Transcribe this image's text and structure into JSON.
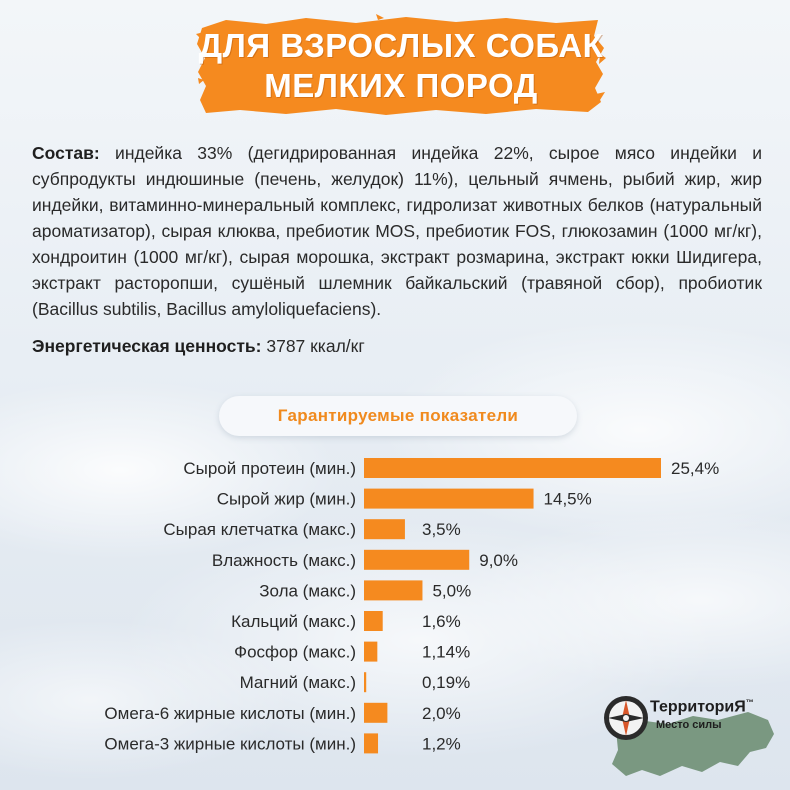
{
  "banner": {
    "line1": "ДЛЯ ВЗРОСЛЫХ СОБАК",
    "line2": "МЕЛКИХ ПОРОД",
    "color": "#f58a1f"
  },
  "composition": {
    "label": "Состав:",
    "text": " индейка 33% (дегидрированная индейка 22%, сырое мясо индейки и субпродукты индюшиные (печень, желудок) 11%), цельный ячмень, рыбий жир, жир индейки, витаминно-минеральный комплекс,  гидролизат животных белков (натуральный ароматизатор), сырая клюква, пребиотик MOS, пребиотик FOS, глюкозамин (1000 мг/кг), хондроитин (1000 мг/кг), сырая морошка, экстракт розмарина, экстракт юкки Шидигера, экстракт расторопши, сушёный шлемник байкальский (травяной сбор), пробиотик (Bacillus subtilis, Bacillus amyloliquefaciens)."
  },
  "energy": {
    "label": "Энергетическая ценность:",
    "value": " 3787 ккал/кг"
  },
  "section_title": "Гарантируемые показатели",
  "chart_data": {
    "type": "bar",
    "orientation": "horizontal",
    "title": "Гарантируемые показатели",
    "categories": [
      "Сырой протеин (мин.)",
      "Сырой жир (мин.)",
      "Сырая клетчатка (макс.)",
      "Влажность (макс.)",
      "Зола (макс.)",
      "Кальций (макс.)",
      "Фосфор (макс.)",
      "Магний (макс.)",
      "Омега-6 жирные кислоты (мин.)",
      "Омега-3 жирные кислоты (мин.)"
    ],
    "values": [
      25.4,
      14.5,
      3.5,
      9.0,
      5.0,
      1.6,
      1.14,
      0.19,
      2.0,
      1.2
    ],
    "value_labels": [
      "25,4%",
      "14,5%",
      "3,5%",
      "9,0%",
      "5,0%",
      "1,6%",
      "1,14%",
      "0,19%",
      "2,0%",
      "1,2%"
    ],
    "xlim": [
      0,
      25.4
    ],
    "bar_color": "#f58a1f",
    "grid": false,
    "legend": "none"
  },
  "logo": {
    "name": "ТерриториЯ",
    "tm": "™",
    "subtitle": "Место силы",
    "map_color": "#6f8f74",
    "icon": "compass-icon"
  }
}
